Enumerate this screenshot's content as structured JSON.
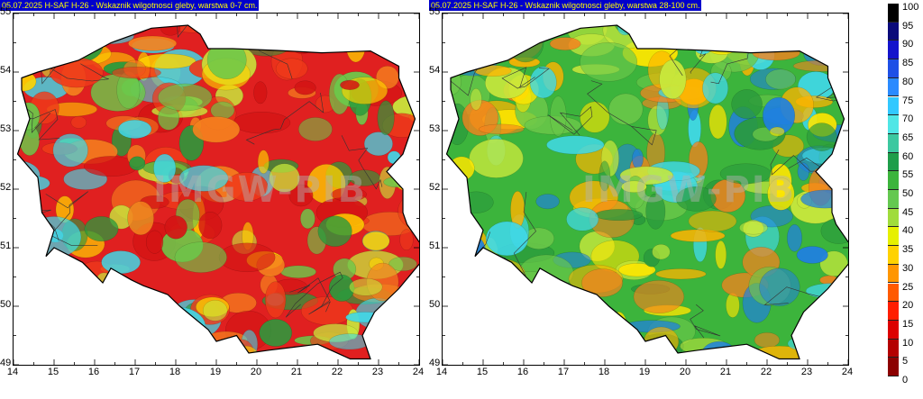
{
  "panels": [
    {
      "id": "left",
      "title": "05.07.2025 H-SAF H-26 - Wskaznik wilgotnosci gleby, warstwa 0-7 cm.",
      "watermark": "IMGW-PIB",
      "y_ticks": [
        "55",
        "54",
        "53",
        "52",
        "51",
        "50",
        "49"
      ],
      "x_ticks": [
        "14",
        "15",
        "16",
        "17",
        "18",
        "19",
        "20",
        "21",
        "22",
        "23",
        "24"
      ],
      "dominant_color": "#e02020",
      "palette": [
        "#d41414",
        "#ee3a1a",
        "#f5821e",
        "#ffd400",
        "#c8e83c",
        "#6cc84a",
        "#2a9a3c",
        "#40d8e8"
      ]
    },
    {
      "id": "right",
      "title": "05.07.2025 H-SAF H-26 - Wskaznik wilgotnosci gleby, warstwa 28-100 cm.",
      "watermark": "IMGW-PIB",
      "y_ticks": [
        "55",
        "54",
        "53",
        "52",
        "51",
        "50",
        "49"
      ],
      "x_ticks": [
        "14",
        "15",
        "16",
        "17",
        "18",
        "19",
        "20",
        "21",
        "22",
        "23",
        "24"
      ],
      "dominant_color": "#3cb43c",
      "palette": [
        "#f5821e",
        "#ffb400",
        "#ffe600",
        "#c8e83c",
        "#6cc84a",
        "#2a9a3c",
        "#40d8e8",
        "#2080e0"
      ]
    }
  ],
  "legend": {
    "levels": [
      "100",
      "95",
      "90",
      "85",
      "80",
      "75",
      "70",
      "65",
      "60",
      "55",
      "50",
      "45",
      "40",
      "35",
      "30",
      "25",
      "20",
      "15",
      "10",
      "5",
      "0"
    ],
    "colors": [
      "#000000",
      "#0a0a7a",
      "#1414cc",
      "#1e50e6",
      "#2a8aff",
      "#32c8ff",
      "#50e6e6",
      "#3cc8a0",
      "#1e9e4a",
      "#3cb43c",
      "#64c850",
      "#a0dc3c",
      "#e6f000",
      "#ffd200",
      "#ff9600",
      "#ff5a00",
      "#ff1e00",
      "#dc0000",
      "#b40000",
      "#8c0000"
    ]
  }
}
